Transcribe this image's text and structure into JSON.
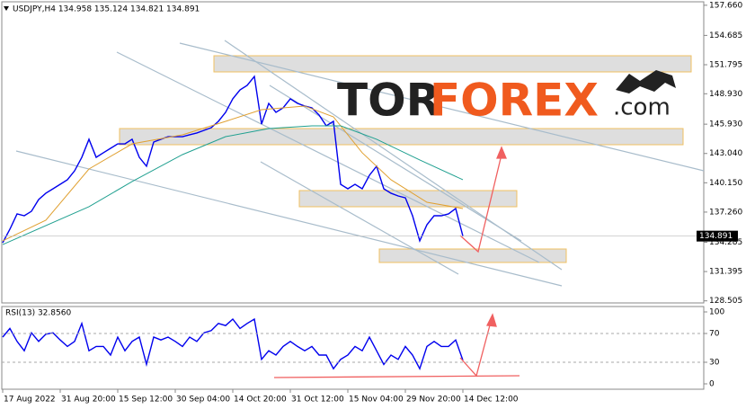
{
  "chart_data": [
    {
      "type": "line",
      "title": "USDJPY,H4 134.958 135.124 134.821 134.891",
      "x": [
        0,
        1,
        2,
        3,
        4,
        5,
        6,
        7,
        8,
        9,
        10,
        11,
        12,
        13,
        14,
        15,
        16,
        17,
        18,
        19,
        20,
        21,
        22,
        23,
        24,
        25,
        26,
        27,
        28,
        29,
        30,
        31,
        32,
        33,
        34,
        35,
        36,
        37,
        38,
        39,
        40,
        41,
        42,
        43,
        44,
        45,
        46,
        47,
        48,
        49,
        50,
        51,
        52,
        53,
        54,
        55,
        56,
        57,
        58,
        59,
        60,
        61,
        62,
        63,
        64
      ],
      "xlim": [
        -0.125,
        97.5
      ],
      "xticks": [
        {
          "value": 0,
          "label": "17 Aug 2022"
        },
        {
          "value": 8,
          "label": "31 Aug 20:00"
        },
        {
          "value": 16,
          "label": "15 Sep 12:00"
        },
        {
          "value": 24,
          "label": "30 Sep 04:00"
        },
        {
          "value": 32,
          "label": "14 Oct 20:00"
        },
        {
          "value": 40,
          "label": "31 Oct 12:00"
        },
        {
          "value": 48,
          "label": "15 Nov 04:00"
        },
        {
          "value": 56,
          "label": "29 Nov 20:00"
        },
        {
          "value": 64,
          "label": "14 Dec 12:00"
        }
      ],
      "ylim": [
        128.3,
        158.0
      ],
      "yticks": [
        {
          "value": 157.66,
          "label": "157.660"
        },
        154.685,
        151.795,
        {
          "value": 148.93,
          "label": "148.930"
        },
        {
          "value": 145.93,
          "label": "145.930"
        },
        {
          "value": 143.04,
          "label": "143.040"
        },
        {
          "value": 140.15,
          "label": "140.150"
        },
        {
          "value": 137.26,
          "label": "137.260"
        },
        134.285,
        131.395,
        128.505
      ],
      "current_price": 134.891,
      "logo": {
        "part1": "TOR",
        "part2": "FOREX",
        "part3": ".com"
      },
      "series": [
        {
          "color": "#0000ee",
          "values": [
            134.24,
            135.57,
            137.08,
            136.9,
            137.34,
            138.5,
            139.12,
            139.56,
            140.0,
            140.45,
            141.33,
            142.66,
            144.44,
            142.66,
            143.11,
            143.55,
            143.99,
            143.99,
            144.44,
            142.66,
            141.78,
            144.17,
            144.44,
            144.7,
            144.7,
            144.7,
            144.88,
            145.06,
            145.32,
            145.59,
            146.21,
            147.1,
            148.43,
            149.31,
            149.76,
            150.64,
            145.94,
            147.98,
            147.1,
            147.54,
            148.43,
            147.98,
            147.72,
            147.54,
            146.83,
            145.77,
            146.21,
            140.0,
            139.56,
            140.0,
            139.56,
            140.89,
            141.78,
            139.56,
            139.12,
            138.85,
            138.67,
            136.9,
            134.42,
            136.01,
            136.9,
            136.9,
            137.08,
            137.61,
            134.89
          ]
        },
        {
          "color": "#e0a030",
          "x": [
            0,
            6,
            12,
            18,
            25,
            31,
            36,
            42,
            46,
            50,
            54,
            59,
            64
          ],
          "values": [
            134.42,
            136.46,
            141.51,
            143.99,
            144.88,
            146.21,
            147.36,
            147.72,
            146.65,
            143.11,
            140.45,
            138.23,
            137.61
          ]
        },
        {
          "color": "#20a090",
          "x": [
            0,
            12,
            18,
            25,
            31,
            37,
            43,
            47,
            52,
            58,
            64
          ],
          "values": [
            134.06,
            137.79,
            140.27,
            142.93,
            144.7,
            145.5,
            145.77,
            145.77,
            144.44,
            142.4,
            140.45
          ]
        }
      ]
    },
    {
      "type": "line",
      "title": "RSI(13) 32.8560",
      "x": [
        0,
        1,
        2,
        3,
        4,
        5,
        6,
        7,
        8,
        9,
        10,
        11,
        12,
        13,
        14,
        15,
        16,
        17,
        18,
        19,
        20,
        21,
        22,
        23,
        24,
        25,
        26,
        27,
        28,
        29,
        30,
        31,
        32,
        33,
        34,
        35,
        36,
        37,
        38,
        39,
        40,
        41,
        42,
        43,
        44,
        45,
        46,
        47,
        48,
        49,
        50,
        51,
        52,
        53,
        54,
        55,
        56,
        57,
        58,
        59,
        60,
        61,
        62,
        63,
        64
      ],
      "xlim": [
        -0.125,
        97.5
      ],
      "ylim": [
        -7.5,
        107.5
      ],
      "yticks": [
        100,
        70,
        30,
        0
      ],
      "grid_levels": [
        70,
        30
      ],
      "series": [
        {
          "color": "#0000ee",
          "values": [
            65,
            77,
            59,
            46,
            71,
            59,
            69,
            71,
            61,
            52,
            59,
            84,
            46,
            52,
            52,
            40,
            65,
            46,
            59,
            65,
            27,
            65,
            61,
            65,
            59,
            52,
            65,
            59,
            71,
            74,
            84,
            81,
            90,
            77,
            84,
            90,
            34,
            46,
            40,
            52,
            59,
            52,
            46,
            52,
            40,
            40,
            21,
            34,
            40,
            52,
            46,
            65,
            46,
            27,
            40,
            34,
            52,
            40,
            21,
            52,
            59,
            52,
            52,
            61,
            32.86
          ]
        }
      ]
    }
  ]
}
